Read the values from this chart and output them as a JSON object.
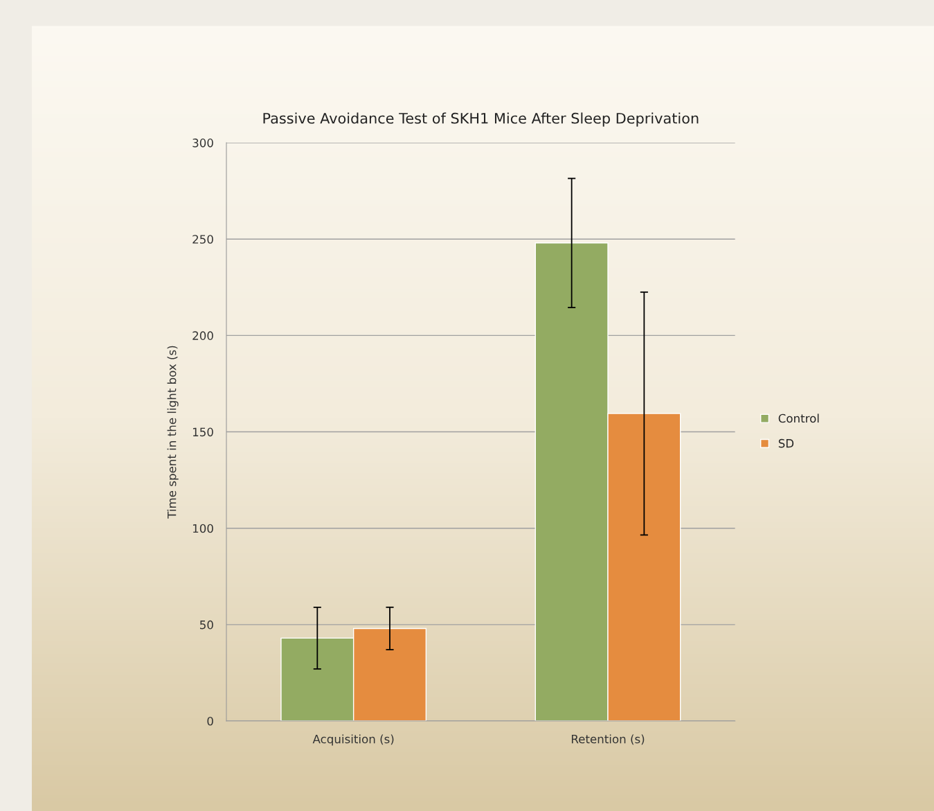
{
  "chart_data": {
    "type": "bar",
    "title": "Passive Avoidance Test of SKH1 Mice After Sleep Deprivation",
    "ylabel": "Time spent in the light box (s)",
    "categories": [
      "Acquisition (s)",
      "Retention (s)"
    ],
    "series": [
      {
        "name": "Control",
        "color": "#93ab62",
        "values": [
          43,
          248
        ],
        "errors": [
          16,
          33.5
        ]
      },
      {
        "name": "SD",
        "color": "#e58c3f",
        "values": [
          48,
          159.5
        ],
        "errors": [
          11,
          63
        ]
      }
    ],
    "ylim": [
      0,
      300
    ],
    "yticks": [
      0,
      50,
      100,
      150,
      200,
      250,
      300
    ],
    "grid": "y",
    "legend": "right"
  }
}
